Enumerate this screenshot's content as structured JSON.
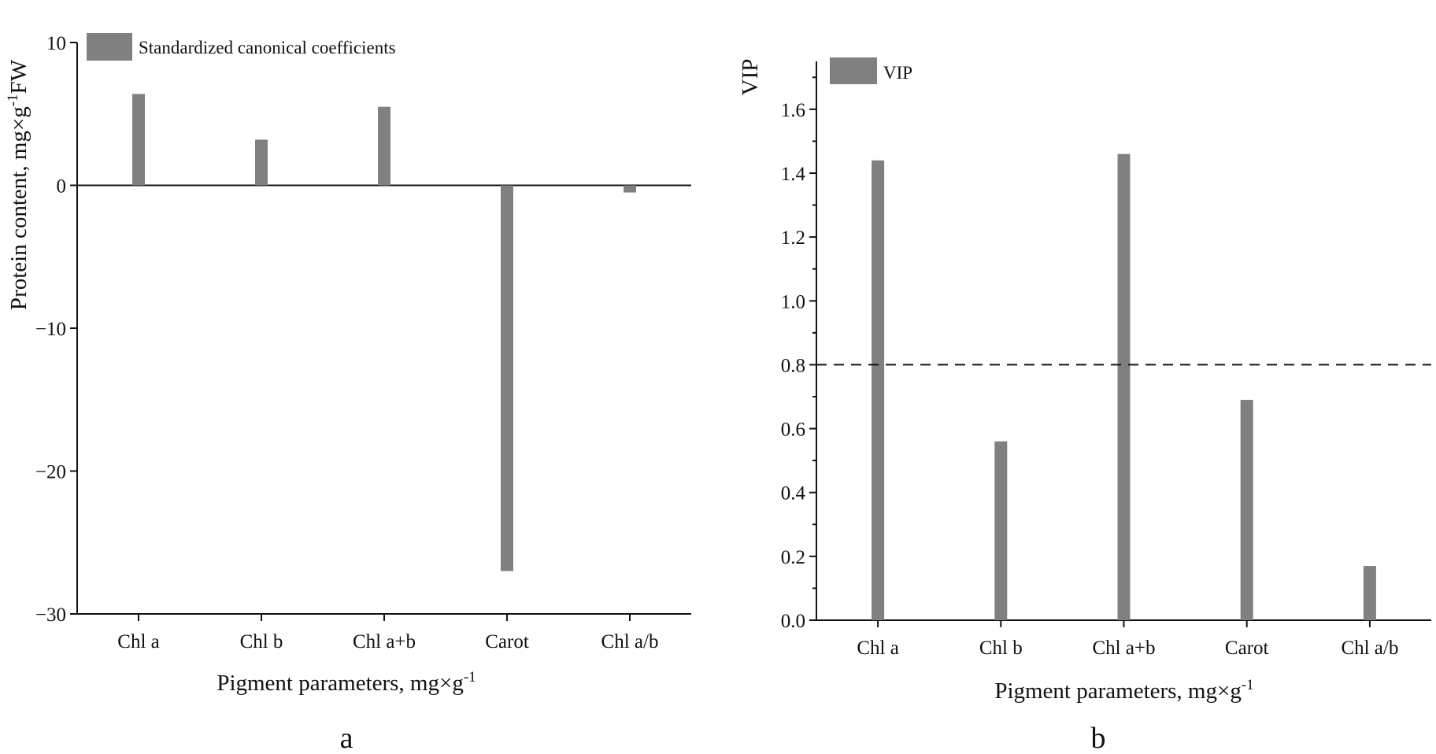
{
  "chart_data": [
    {
      "type": "bar",
      "panel_label": "a",
      "categories": [
        "Chl a",
        "Chl b",
        "Chl a+b",
        "Carot",
        "Chl a/b"
      ],
      "series": [
        {
          "name": "Standardized canonical coefficients",
          "values": [
            6.4,
            3.2,
            5.5,
            -27.0,
            -0.5
          ],
          "color": "#808080"
        }
      ],
      "xlabel": "Pigment parameters, mg×g",
      "xlabel_sup": "-1",
      "ylabel": "Protein content, mg×g",
      "ylabel_sup": "-1",
      "ylabel_suffix": "FW",
      "ylim": [
        -30,
        10
      ],
      "yticks": [
        10,
        0,
        -10,
        -20,
        -30
      ],
      "ytick_labels": [
        "10",
        "0",
        "−10",
        "−20",
        "−30"
      ],
      "zero_line": true,
      "grid": false,
      "legend_position": "top-left"
    },
    {
      "type": "bar",
      "panel_label": "b",
      "categories": [
        "Chl a",
        "Chl b",
        "Chl a+b",
        "Carot",
        "Chl a/b"
      ],
      "series": [
        {
          "name": "VIP",
          "values": [
            1.44,
            0.56,
            1.46,
            0.69,
            0.17
          ],
          "color": "#808080"
        }
      ],
      "xlabel": "Pigment parameters, mg×g",
      "xlabel_sup": "-1",
      "ylabel": "VIP",
      "ylim": [
        0,
        1.75
      ],
      "yticks": [
        0.0,
        0.2,
        0.4,
        0.6,
        0.8,
        1.0,
        1.2,
        1.4,
        1.6
      ],
      "ytick_labels": [
        "0.0",
        "0.2",
        "0.4",
        "0.6",
        "0.8",
        "1.0",
        "1.2",
        "1.4",
        "1.6"
      ],
      "threshold": 0.8,
      "threshold_style": "dashed",
      "grid": false,
      "legend_position": "top-left"
    }
  ]
}
